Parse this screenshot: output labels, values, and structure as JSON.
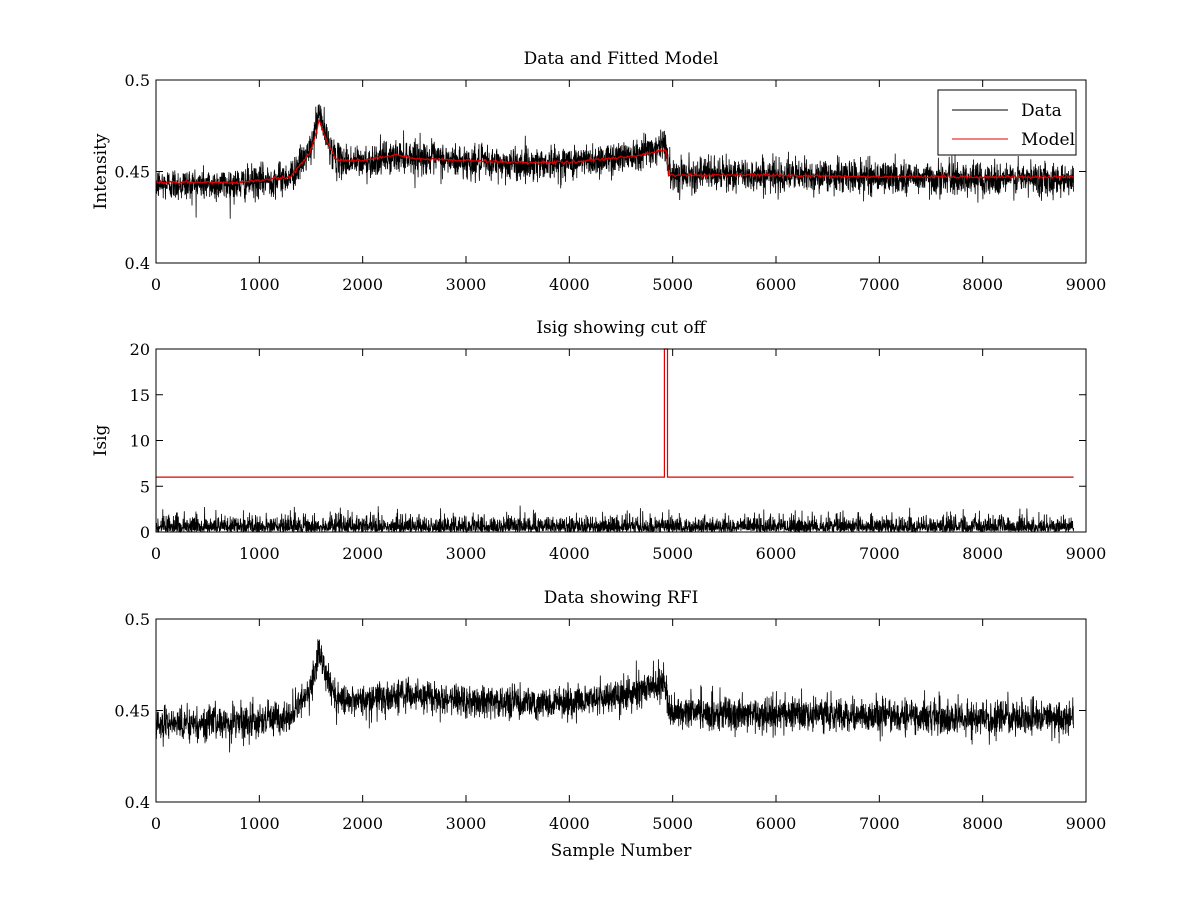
{
  "chart_data": [
    {
      "type": "line",
      "title": "Data and Fitted Model",
      "xlabel": "",
      "ylabel": "Intensity",
      "xlim": [
        0,
        9000
      ],
      "ylim": [
        0.4,
        0.5
      ],
      "xticks": [
        "0",
        "1000",
        "2000",
        "3000",
        "4000",
        "5000",
        "6000",
        "7000",
        "8000",
        "9000"
      ],
      "yticks": [
        "0.4",
        "0.45",
        "0.5"
      ],
      "ytick_values": [
        0.4,
        0.45,
        0.5
      ],
      "legend": {
        "placement": "top-right",
        "entries": [
          "Data",
          "Model"
        ]
      },
      "series": [
        {
          "name": "Data",
          "color": "#000000",
          "kind": "noisy",
          "noise_sd": 0.0045,
          "spike_at": 4940,
          "x": [
            0,
            800,
            1300,
            1500,
            1580,
            1650,
            1750,
            2000,
            2400,
            3000,
            3500,
            4000,
            4400,
            4700,
            4940,
            4960,
            6000,
            7000,
            8000,
            8880
          ],
          "y": [
            0.443,
            0.443,
            0.447,
            0.462,
            0.483,
            0.468,
            0.456,
            0.455,
            0.459,
            0.455,
            0.454,
            0.455,
            0.457,
            0.461,
            0.465,
            0.449,
            0.448,
            0.447,
            0.446,
            0.446
          ]
        },
        {
          "name": "Model",
          "color": "#e00000",
          "kind": "smooth",
          "x": [
            0,
            800,
            1300,
            1500,
            1580,
            1650,
            1750,
            2000,
            2330,
            2500,
            3000,
            3500,
            4000,
            4400,
            4700,
            4940,
            4960,
            5800,
            6000,
            7000,
            8000,
            8880
          ],
          "y": [
            0.444,
            0.444,
            0.447,
            0.461,
            0.478,
            0.467,
            0.456,
            0.456,
            0.459,
            0.457,
            0.456,
            0.455,
            0.455,
            0.457,
            0.459,
            0.462,
            0.448,
            0.448,
            0.448,
            0.447,
            0.447,
            0.447
          ]
        }
      ]
    },
    {
      "type": "line",
      "title": "Isig showing cut off",
      "xlabel": "",
      "ylabel": "Isig",
      "xlim": [
        0,
        9000
      ],
      "ylim": [
        0,
        20
      ],
      "xticks": [
        "0",
        "1000",
        "2000",
        "3000",
        "4000",
        "5000",
        "6000",
        "7000",
        "8000",
        "9000"
      ],
      "yticks": [
        "0",
        "5",
        "10",
        "15",
        "20"
      ],
      "ytick_values": [
        0,
        5,
        10,
        15,
        20
      ],
      "series": [
        {
          "name": "Isig",
          "color": "#000000",
          "kind": "halfnormal",
          "scale": 0.8,
          "x": [
            0,
            8880
          ]
        },
        {
          "name": "Cut off",
          "color": "#e00000",
          "kind": "step",
          "x": [
            0,
            4920,
            4920,
            4950,
            4950,
            8880
          ],
          "y": [
            6,
            6,
            20,
            20,
            6,
            6
          ]
        }
      ]
    },
    {
      "type": "line",
      "title": "Data showing RFI",
      "xlabel": "Sample Number",
      "ylabel": "",
      "xlim": [
        0,
        9000
      ],
      "ylim": [
        0.4,
        0.5
      ],
      "xticks": [
        "0",
        "1000",
        "2000",
        "3000",
        "4000",
        "5000",
        "6000",
        "7000",
        "8000",
        "9000"
      ],
      "yticks": [
        "0.4",
        "0.45",
        "0.5"
      ],
      "ytick_values": [
        0.4,
        0.45,
        0.5
      ],
      "series": [
        {
          "name": "Data",
          "color": "#000000",
          "kind": "noisy",
          "noise_sd": 0.0045,
          "spike_at": 4940,
          "x": [
            0,
            800,
            1300,
            1500,
            1580,
            1650,
            1750,
            2000,
            2400,
            3000,
            3500,
            4000,
            4400,
            4700,
            4940,
            4960,
            6000,
            7000,
            8000,
            8880
          ],
          "y": [
            0.443,
            0.443,
            0.447,
            0.462,
            0.483,
            0.468,
            0.456,
            0.455,
            0.459,
            0.455,
            0.454,
            0.455,
            0.457,
            0.461,
            0.465,
            0.449,
            0.448,
            0.447,
            0.446,
            0.446
          ]
        }
      ]
    }
  ]
}
